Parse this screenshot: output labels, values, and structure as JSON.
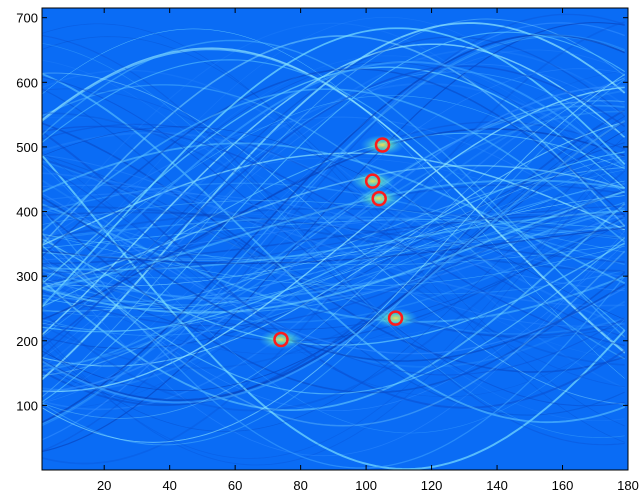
{
  "chart_data": {
    "type": "heatmap",
    "title": "",
    "xlabel": "",
    "ylabel": "",
    "xlim": [
      1,
      180
    ],
    "ylim": [
      0,
      715
    ],
    "x_ticks": [
      20,
      40,
      60,
      80,
      100,
      120,
      140,
      160,
      180
    ],
    "y_ticks": [
      100,
      200,
      300,
      400,
      500,
      600,
      700
    ],
    "grid": false,
    "colormap": "jet",
    "peaks": [
      {
        "x": 74,
        "y": 202
      },
      {
        "x": 102,
        "y": 447
      },
      {
        "x": 104,
        "y": 420
      },
      {
        "x": 105,
        "y": 503
      },
      {
        "x": 109,
        "y": 235
      }
    ]
  },
  "colors": {
    "background": "#0a6cf5",
    "peak_marker": "#ff1a1a",
    "axis": "#000000"
  }
}
